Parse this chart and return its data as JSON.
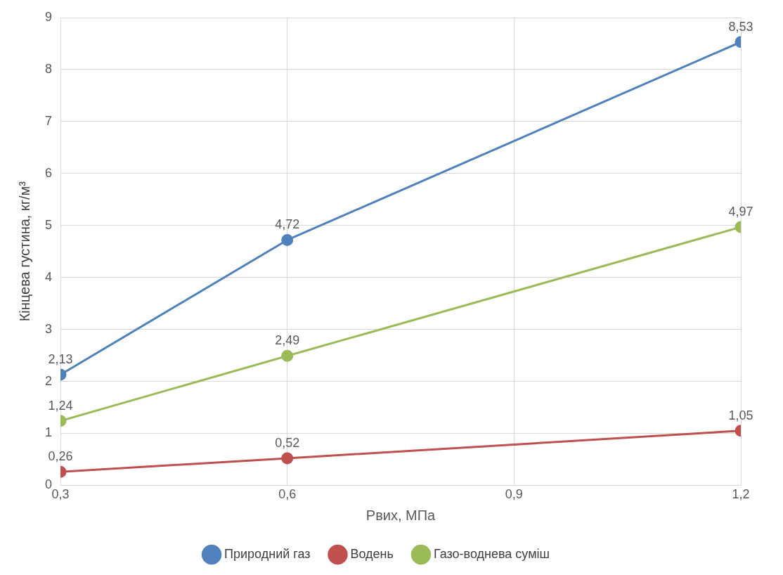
{
  "chart_data": {
    "type": "line",
    "xlabel": "Рвих, МПа",
    "ylabel": "Кінцева густина, кг/м³",
    "x": [
      0.3,
      0.6,
      1.2
    ],
    "xlim": [
      0.3,
      1.2
    ],
    "xticks": [
      {
        "value": 0.3,
        "label": "0,3"
      },
      {
        "value": 0.6,
        "label": "0,6"
      },
      {
        "value": 0.9,
        "label": "0,9"
      },
      {
        "value": 1.2,
        "label": "1,2"
      }
    ],
    "ylim": [
      0,
      9
    ],
    "yticks": [
      0,
      1,
      2,
      3,
      4,
      5,
      6,
      7,
      8,
      9
    ],
    "grid": true,
    "legend": "bottom",
    "marker": "circle",
    "line_style": "solid",
    "series": [
      {
        "name": "Природний газ",
        "color": "#4f81bd",
        "values": [
          2.13,
          4.72,
          8.53
        ],
        "value_labels": [
          "2,13",
          "4,72",
          "8,53"
        ]
      },
      {
        "name": "Водень",
        "color": "#c0504d",
        "values": [
          0.26,
          0.52,
          1.05
        ],
        "value_labels": [
          "0,26",
          "0,52",
          "1,05"
        ]
      },
      {
        "name": "Газо-воднева суміш",
        "color": "#9bbb59",
        "values": [
          1.24,
          2.49,
          4.97
        ],
        "value_labels": [
          "1,24",
          "2,49",
          "4,97"
        ]
      }
    ]
  }
}
